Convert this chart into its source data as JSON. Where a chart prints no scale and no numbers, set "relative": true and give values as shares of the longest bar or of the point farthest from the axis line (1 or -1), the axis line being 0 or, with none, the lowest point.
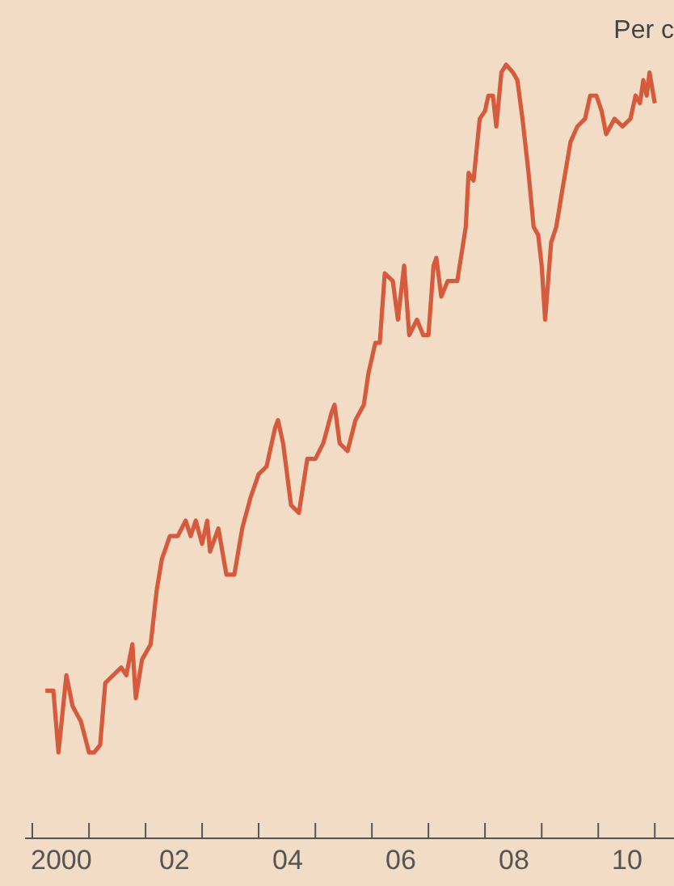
{
  "chart_data": {
    "type": "line",
    "title": "Per c",
    "relative": true,
    "tick_labels": "x",
    "grid": false,
    "xlim": [
      "1999-11-10",
      "2011-05-05"
    ],
    "xticks": [
      {
        "value": "2000-01-01",
        "label": null
      },
      {
        "value": "2000-07-01",
        "label": "2000"
      },
      {
        "value": "2001-01-01",
        "label": null
      },
      {
        "value": "2002-01-01",
        "label": null
      },
      {
        "value": "2002-07-01",
        "label": "02"
      },
      {
        "value": "2003-01-01",
        "label": null
      },
      {
        "value": "2004-01-01",
        "label": null
      },
      {
        "value": "2004-07-01",
        "label": "04"
      },
      {
        "value": "2005-01-01",
        "label": null
      },
      {
        "value": "2006-01-01",
        "label": null
      },
      {
        "value": "2006-07-01",
        "label": "06"
      },
      {
        "value": "2007-01-01",
        "label": null
      },
      {
        "value": "2008-01-01",
        "label": null
      },
      {
        "value": "2008-07-01",
        "label": "08"
      },
      {
        "value": "2009-01-01",
        "label": null
      },
      {
        "value": "2010-01-01",
        "label": null
      },
      {
        "value": "2010-07-01",
        "label": "10"
      },
      {
        "value": "2011-01-01",
        "label": null
      }
    ],
    "series": [
      {
        "color": "#d65a3c",
        "line_style": "solid",
        "marker": "none",
        "x": [
          "2000-03-25",
          "2000-05-16",
          "2000-06-18",
          "2000-08-08",
          "2000-09-17",
          "2000-11-10",
          "2001-01-01",
          "2001-02-03",
          "2001-03-14",
          "2001-04-16",
          "2001-06-07",
          "2001-07-28",
          "2001-08-30",
          "2001-10-08",
          "2001-10-30",
          "2001-12-09",
          "2002-02-03",
          "2002-03-14",
          "2002-04-16",
          "2002-06-07",
          "2002-07-28",
          "2002-09-17",
          "2002-10-19",
          "2002-11-21",
          "2003-01-01",
          "2003-02-03",
          "2003-02-21",
          "2003-04-16",
          "2003-06-07",
          "2003-07-28",
          "2003-09-17",
          "2003-11-10",
          "2004-01-01",
          "2004-02-21",
          "2004-04-16",
          "2004-05-05",
          "2004-06-07",
          "2004-07-28",
          "2004-09-17",
          "2004-11-10",
          "2005-01-01",
          "2005-02-21",
          "2005-04-16",
          "2005-05-05",
          "2005-06-07",
          "2005-07-28",
          "2005-09-17",
          "2005-11-10",
          "2005-12-09",
          "2006-01-23",
          "2006-02-21",
          "2006-03-25",
          "2006-05-16",
          "2006-06-18",
          "2006-07-28",
          "2006-08-30",
          "2006-10-19",
          "2006-11-28",
          "2007-01-01",
          "2007-02-03",
          "2007-02-21",
          "2007-03-25",
          "2007-05-05",
          "2007-07-06",
          "2007-08-30",
          "2007-09-17",
          "2007-10-19",
          "2007-11-28",
          "2008-01-01",
          "2008-01-23",
          "2008-02-21",
          "2008-03-14",
          "2008-04-16",
          "2008-05-16",
          "2008-06-29",
          "2008-07-28",
          "2008-08-30",
          "2008-10-08",
          "2008-11-10",
          "2008-12-09",
          "2009-01-01",
          "2009-01-23",
          "2009-03-03",
          "2009-04-05",
          "2009-05-16",
          "2009-07-06",
          "2009-08-19",
          "2009-10-08",
          "2009-11-10",
          "2009-12-20",
          "2010-01-23",
          "2010-02-21",
          "2010-04-16",
          "2010-06-07",
          "2010-07-28",
          "2010-08-30",
          "2010-09-27",
          "2010-10-19",
          "2010-11-10",
          "2010-11-28",
          "2011-01-01"
        ],
        "values": [
          0.19,
          0.19,
          0.11,
          0.21,
          0.17,
          0.15,
          0.11,
          0.11,
          0.12,
          0.2,
          0.21,
          0.22,
          0.21,
          0.25,
          0.18,
          0.23,
          0.25,
          0.32,
          0.36,
          0.39,
          0.39,
          0.41,
          0.39,
          0.41,
          0.38,
          0.41,
          0.37,
          0.4,
          0.34,
          0.34,
          0.4,
          0.44,
          0.47,
          0.48,
          0.53,
          0.54,
          0.51,
          0.43,
          0.42,
          0.49,
          0.49,
          0.51,
          0.55,
          0.56,
          0.51,
          0.5,
          0.54,
          0.56,
          0.6,
          0.64,
          0.64,
          0.73,
          0.72,
          0.67,
          0.74,
          0.65,
          0.67,
          0.65,
          0.65,
          0.74,
          0.75,
          0.7,
          0.72,
          0.72,
          0.79,
          0.86,
          0.85,
          0.93,
          0.94,
          0.96,
          0.96,
          0.92,
          0.99,
          1,
          0.99,
          0.98,
          0.93,
          0.86,
          0.79,
          0.78,
          0.74,
          0.67,
          0.77,
          0.79,
          0.84,
          0.9,
          0.92,
          0.93,
          0.96,
          0.96,
          0.94,
          0.91,
          0.93,
          0.92,
          0.93,
          0.96,
          0.95,
          0.98,
          0.96,
          0.99,
          0.95
        ]
      }
    ]
  }
}
